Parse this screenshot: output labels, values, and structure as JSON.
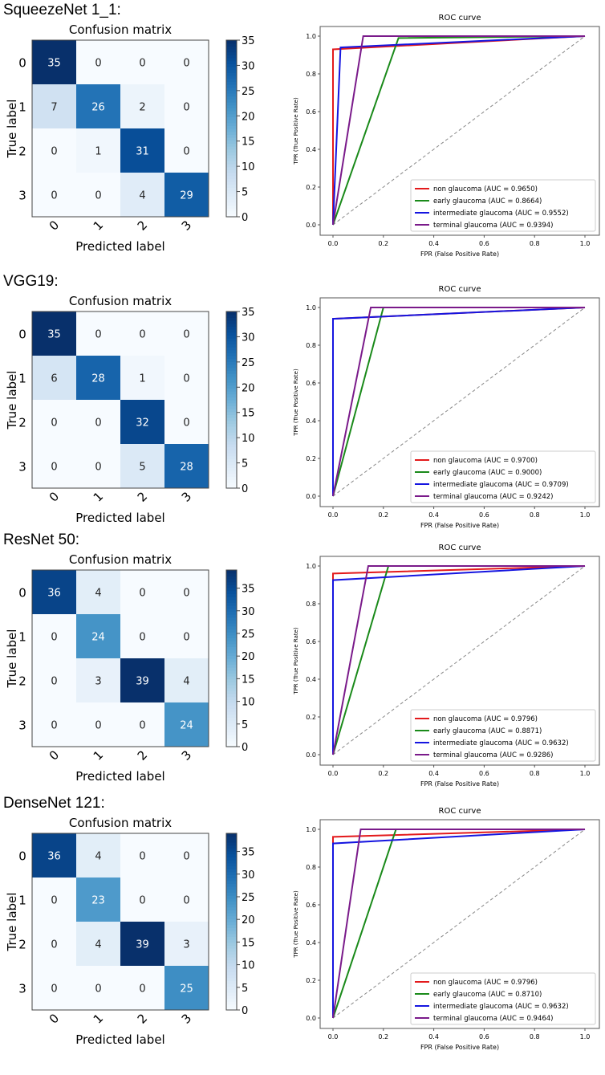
{
  "chart_data": [
    {
      "type": "heatmap",
      "model": "SqueezeNet 1_1:",
      "title": "Confusion matrix",
      "xlabel": "Predicted label",
      "ylabel": "True label",
      "ticks": [
        "0",
        "1",
        "2",
        "3"
      ],
      "matrix": [
        [
          35,
          0,
          0,
          0
        ],
        [
          7,
          26,
          2,
          0
        ],
        [
          0,
          1,
          31,
          0
        ],
        [
          0,
          0,
          4,
          29
        ]
      ],
      "colorbar_max": 35,
      "colorbar_ticks": [
        0,
        5,
        10,
        15,
        20,
        25,
        30,
        35
      ],
      "roc": {
        "type": "line",
        "title": "ROC curve",
        "xlabel": "FPR (False Positive Rate)",
        "ylabel": "TPR (True Positive Rate)",
        "ticks": [
          "0.0",
          "0.2",
          "0.4",
          "0.6",
          "0.8",
          "1.0"
        ],
        "legend_position": "bottom-right",
        "series": [
          {
            "name": "non glaucoma (AUC = 0.9650)",
            "color": "#e31a1c",
            "x": [
              0,
              0,
              1
            ],
            "y": [
              0,
              0.93,
              1
            ]
          },
          {
            "name": "early glaucoma (AUC = 0.8664)",
            "color": "#1a8a1a",
            "x": [
              0,
              0.26,
              1
            ],
            "y": [
              0,
              0.99,
              1
            ]
          },
          {
            "name": "intermediate glaucoma (AUC = 0.9552)",
            "color": "#1515e0",
            "x": [
              0,
              0.03,
              1
            ],
            "y": [
              0,
              0.94,
              1
            ]
          },
          {
            "name": "terminal glaucoma (AUC = 0.9394)",
            "color": "#7a1a8a",
            "x": [
              0,
              0.12,
              1
            ],
            "y": [
              0,
              1,
              1
            ]
          }
        ]
      }
    },
    {
      "type": "heatmap",
      "model": "VGG19:",
      "title": "Confusion matrix",
      "xlabel": "Predicted label",
      "ylabel": "True label",
      "ticks": [
        "0",
        "1",
        "2",
        "3"
      ],
      "matrix": [
        [
          35,
          0,
          0,
          0
        ],
        [
          6,
          28,
          1,
          0
        ],
        [
          0,
          0,
          32,
          0
        ],
        [
          0,
          0,
          5,
          28
        ]
      ],
      "colorbar_max": 35,
      "colorbar_ticks": [
        0,
        5,
        10,
        15,
        20,
        25,
        30,
        35
      ],
      "roc": {
        "type": "line",
        "title": "ROC curve",
        "xlabel": "FPR (False Positive Rate)",
        "ylabel": "TPR (True Positive Rate)",
        "ticks": [
          "0.0",
          "0.2",
          "0.4",
          "0.6",
          "0.8",
          "1.0"
        ],
        "legend_position": "bottom-right",
        "series": [
          {
            "name": "non glaucoma (AUC = 0.9700)",
            "color": "#e31a1c",
            "x": [
              0,
              0,
              1
            ],
            "y": [
              0,
              0.94,
              1
            ]
          },
          {
            "name": "early glaucoma (AUC = 0.9000)",
            "color": "#1a8a1a",
            "x": [
              0,
              0.2,
              1
            ],
            "y": [
              0,
              1,
              1
            ]
          },
          {
            "name": "intermediate glaucoma (AUC = 0.9709)",
            "color": "#1515e0",
            "x": [
              0,
              0,
              1
            ],
            "y": [
              0,
              0.94,
              1
            ]
          },
          {
            "name": "terminal glaucoma (AUC = 0.9242)",
            "color": "#7a1a8a",
            "x": [
              0,
              0.15,
              1
            ],
            "y": [
              0,
              1,
              1
            ]
          }
        ]
      }
    },
    {
      "type": "heatmap",
      "model": "ResNet 50:",
      "title": "Confusion matrix",
      "xlabel": "Predicted label",
      "ylabel": "True label",
      "ticks": [
        "0",
        "1",
        "2",
        "3"
      ],
      "matrix": [
        [
          36,
          4,
          0,
          0
        ],
        [
          0,
          24,
          0,
          0
        ],
        [
          0,
          3,
          39,
          4
        ],
        [
          0,
          0,
          0,
          24
        ]
      ],
      "colorbar_max": 39,
      "colorbar_ticks": [
        0,
        5,
        10,
        15,
        20,
        25,
        30,
        35
      ],
      "roc": {
        "type": "line",
        "title": "ROC curve",
        "xlabel": "FPR (False Positive Rate)",
        "ylabel": "TPR (True Positive Rate)",
        "ticks": [
          "0.0",
          "0.2",
          "0.4",
          "0.6",
          "0.8",
          "1.0"
        ],
        "legend_position": "bottom-right",
        "series": [
          {
            "name": "non glaucoma (AUC = 0.9796)",
            "color": "#e31a1c",
            "x": [
              0,
              0,
              1
            ],
            "y": [
              0,
              0.96,
              1
            ]
          },
          {
            "name": "early glaucoma (AUC = 0.8871)",
            "color": "#1a8a1a",
            "x": [
              0,
              0.22,
              1
            ],
            "y": [
              0,
              1,
              1
            ]
          },
          {
            "name": "intermediate glaucoma (AUC = 0.9632)",
            "color": "#1515e0",
            "x": [
              0,
              0,
              1
            ],
            "y": [
              0,
              0.925,
              1
            ]
          },
          {
            "name": "terminal glaucoma (AUC = 0.9286)",
            "color": "#7a1a8a",
            "x": [
              0,
              0.14,
              1
            ],
            "y": [
              0,
              1,
              1
            ]
          }
        ]
      }
    },
    {
      "type": "heatmap",
      "model": "DenseNet 121:",
      "title": "Confusion matrix",
      "xlabel": "Predicted label",
      "ylabel": "True label",
      "ticks": [
        "0",
        "1",
        "2",
        "3"
      ],
      "matrix": [
        [
          36,
          4,
          0,
          0
        ],
        [
          0,
          23,
          0,
          0
        ],
        [
          0,
          4,
          39,
          3
        ],
        [
          0,
          0,
          0,
          25
        ]
      ],
      "colorbar_max": 39,
      "colorbar_ticks": [
        0,
        5,
        10,
        15,
        20,
        25,
        30,
        35
      ],
      "roc": {
        "type": "line",
        "title": "ROC curve",
        "xlabel": "FPR (False Positive Rate)",
        "ylabel": "TPR (True Positive Rate)",
        "ticks": [
          "0.0",
          "0.2",
          "0.4",
          "0.6",
          "0.8",
          "1.0"
        ],
        "legend_position": "bottom-right",
        "series": [
          {
            "name": "non glaucoma (AUC = 0.9796)",
            "color": "#e31a1c",
            "x": [
              0,
              0,
              1
            ],
            "y": [
              0,
              0.96,
              1
            ]
          },
          {
            "name": "early glaucoma (AUC = 0.8710)",
            "color": "#1a8a1a",
            "x": [
              0,
              0.25,
              1
            ],
            "y": [
              0,
              1,
              1
            ]
          },
          {
            "name": "intermediate glaucoma (AUC = 0.9632)",
            "color": "#1515e0",
            "x": [
              0,
              0,
              1
            ],
            "y": [
              0,
              0.925,
              1
            ]
          },
          {
            "name": "terminal glaucoma (AUC = 0.9464)",
            "color": "#7a1a8a",
            "x": [
              0,
              0.11,
              1
            ],
            "y": [
              0,
              1,
              1
            ]
          }
        ]
      }
    }
  ]
}
